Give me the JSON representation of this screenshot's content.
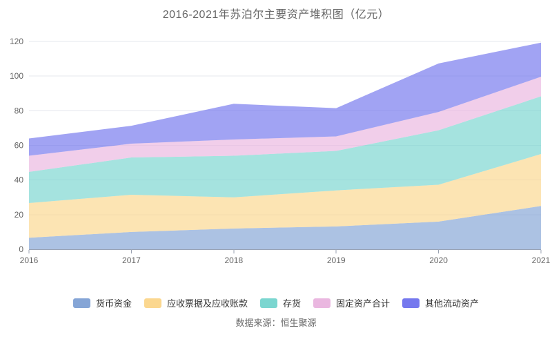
{
  "title": "2016-2021年苏泊尔主要资产堆积图（亿元）",
  "source": "数据来源：恒生聚源",
  "style": {
    "title_color": "#676767",
    "axis_label_color": "#666666",
    "legend_text_color": "#333333",
    "gridline_color": "#e4e7ee",
    "axis_line_color": "#9aa2b1",
    "area_opacity": 0.68
  },
  "chart_data": {
    "type": "area",
    "stacked": true,
    "title": "2016-2021年苏泊尔主要资产堆积图（亿元）",
    "x": [
      "2016",
      "2017",
      "2018",
      "2019",
      "2020",
      "2021"
    ],
    "xlabel": "",
    "ylabel": "",
    "ylim": [
      0,
      120
    ],
    "yticks": [
      0,
      20,
      40,
      60,
      80,
      100,
      120
    ],
    "grid": true,
    "legend_position": "bottom",
    "series": [
      {
        "name": "货币资金",
        "color": "#85a5d6",
        "values": [
          6.7,
          10.0,
          12.0,
          13.2,
          16.0,
          25.0
        ]
      },
      {
        "name": "应收票据及应收账款",
        "color": "#fbd78f",
        "values": [
          20.0,
          21.5,
          18.0,
          20.8,
          21.3,
          30.0
        ]
      },
      {
        "name": "存货",
        "color": "#7bd6d0",
        "values": [
          18.0,
          21.5,
          24.0,
          22.8,
          31.4,
          33.3
        ]
      },
      {
        "name": "固定资产合计",
        "color": "#eab7e0",
        "values": [
          9.3,
          8.0,
          9.4,
          8.4,
          10.6,
          11.3
        ]
      },
      {
        "name": "其他流动资产",
        "color": "#7578ee",
        "values": [
          10.0,
          10.3,
          20.6,
          16.3,
          28.0,
          19.7
        ]
      }
    ]
  }
}
